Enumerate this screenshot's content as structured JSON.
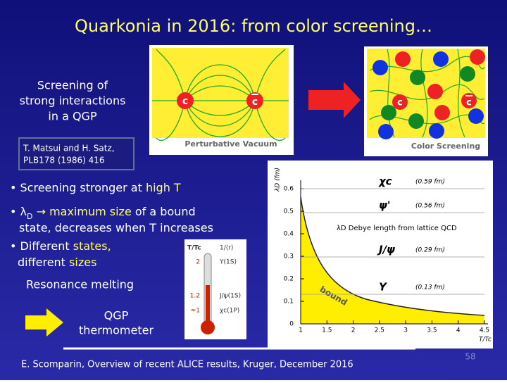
{
  "title": "Quarkonia in 2016: from color screening…",
  "intro": [
    "Screening of",
    "strong interactions",
    "in a QGP"
  ],
  "reference": [
    "T. Matsui and H. Satz,",
    "PLB178 (1986) 416"
  ],
  "vacuum_figure": {
    "quark": "c",
    "antiquark": "c",
    "caption": "Perturbative Vacuum"
  },
  "screening_figure": {
    "quark": "c",
    "antiquark": "c",
    "caption": "Color Screening"
  },
  "bullets": [
    [
      {
        "text": "• Screening stronger at ",
        "color": "#ffffff"
      },
      {
        "text": "high T",
        "color": "#ffff66"
      }
    ],
    [
      {
        "text": "• ",
        "color": "#ffffff"
      },
      {
        "text": "λ",
        "color": "#ffffff"
      },
      {
        "text": "D",
        "color": "#ffffff"
      },
      {
        "text": " → ",
        "color": "#ffff66"
      },
      {
        "text": "maximum size",
        "color": "#ffff66"
      },
      {
        "text": " of a bound",
        "color": "#ffffff"
      }
    ],
    [
      {
        "text": "state, decreases when T increases",
        "color": "#ffffff"
      }
    ],
    [
      {
        "text": "• Different ",
        "color": "#ffffff"
      },
      {
        "text": "states,",
        "color": "#ffff66"
      }
    ],
    [
      {
        "text": "different ",
        "color": "#ffffff"
      },
      {
        "text": "sizes",
        "color": "#ffff66"
      }
    ]
  ],
  "resonance": "Resonance melting",
  "thermometer": {
    "header": [
      "T/Tc",
      "1/⟨r⟩"
    ],
    "rows": [
      [
        "2",
        "Υ(1S)"
      ],
      [
        "1.2",
        "J/ψ(1S)"
      ],
      [
        "≈1",
        "χc(1P)"
      ]
    ]
  },
  "qgp_label": [
    "QGP",
    "thermometer"
  ],
  "plot": {
    "ylabel": "λD (fm)",
    "xlabel": "T/Tc",
    "yticks": [
      0,
      0.1,
      0.2,
      0.3,
      0.4,
      0.5,
      0.6
    ],
    "xticks": [
      1,
      1.5,
      2,
      2.5,
      3,
      3.5,
      4,
      4.5
    ],
    "ylim": [
      0,
      0.6
    ],
    "xlim": [
      1,
      4.5
    ],
    "curve_label": "λD Debye length from lattice QCD",
    "region_label": "bound",
    "states": [
      {
        "name": "χc",
        "radius": "(0.59 fm)"
      },
      {
        "name": "ψ'",
        "radius": "(0.56 fm)"
      },
      {
        "name": "J/ψ",
        "radius": "(0.29 fm)"
      },
      {
        "name": "Υ",
        "radius": "(0.13 fm)"
      }
    ]
  },
  "footer": "E. Scomparin, Overview of recent ALICE results, Kruger, December 2016",
  "page_number": "58"
}
